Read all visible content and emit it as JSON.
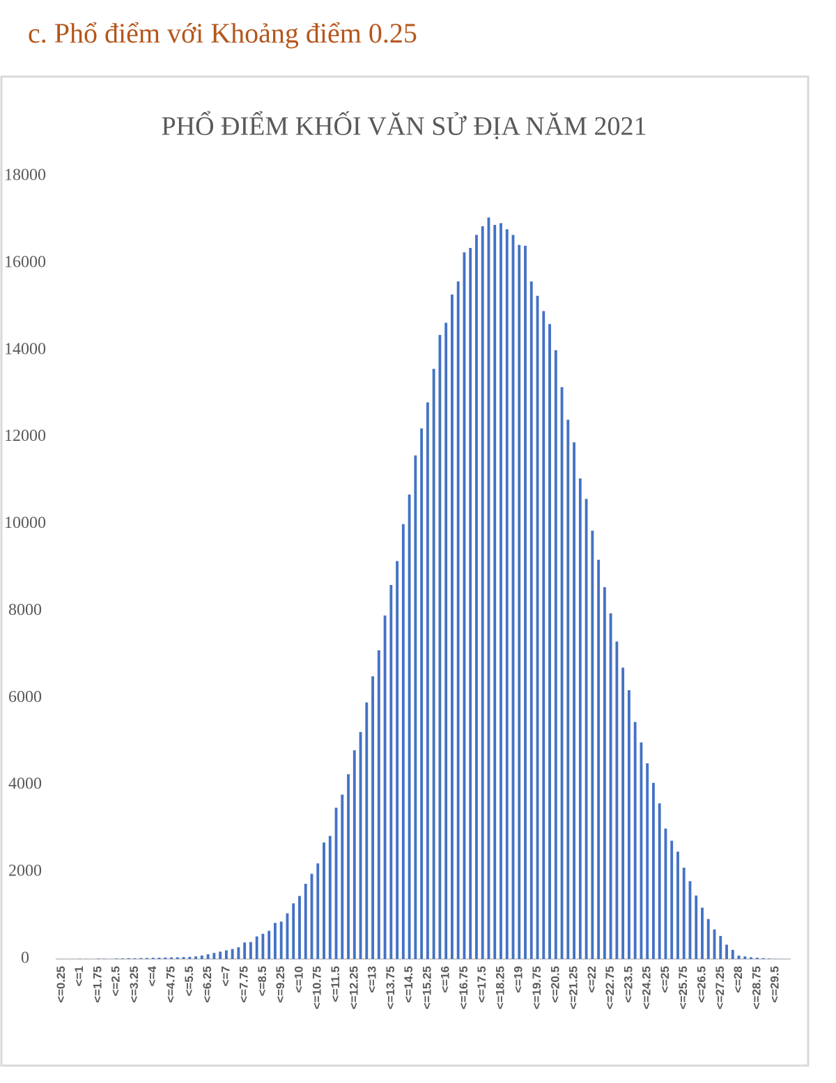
{
  "heading": "c.  Phổ điểm với Khoảng điểm 0.25",
  "chart_data": {
    "type": "bar",
    "title": "PHỔ ĐIỂM KHỐI VĂN SỬ ĐỊA NĂM 2021",
    "color": "#4472c4",
    "categories": [
      "<=0.25",
      null,
      null,
      "<=1",
      null,
      null,
      "<=1.75",
      null,
      null,
      "<=2.5",
      null,
      null,
      "<=3.25",
      null,
      null,
      "<=4",
      null,
      null,
      "<=4.75",
      null,
      null,
      "<=5.5",
      null,
      null,
      "<=6.25",
      null,
      null,
      "<=7",
      null,
      null,
      "<=7.75",
      null,
      null,
      "<=8.5",
      null,
      null,
      "<=9.25",
      null,
      null,
      "<=10",
      null,
      null,
      "<=10.75",
      null,
      null,
      "<=11.5",
      null,
      null,
      "<=12.25",
      null,
      null,
      "<=13",
      null,
      null,
      "<=13.75",
      null,
      null,
      "<=14.5",
      null,
      null,
      "<=15.25",
      null,
      null,
      "<=16",
      null,
      null,
      "<=16.75",
      null,
      null,
      "<=17.5",
      null,
      null,
      "<=18.25",
      null,
      null,
      "<=19",
      null,
      null,
      "<=19.75",
      null,
      null,
      "<=20.5",
      null,
      null,
      "<=21.25",
      null,
      null,
      "<=22",
      null,
      null,
      "<=22.75",
      null,
      null,
      "<=23.5",
      null,
      null,
      "<=24.25",
      null,
      null,
      "<=25",
      null,
      null,
      "<=25.75",
      null,
      null,
      "<=26.5",
      null,
      null,
      "<=27.25",
      null,
      null,
      "<=28",
      null,
      null,
      "<=28.75",
      null,
      null,
      "<=29.5",
      null,
      null
    ],
    "values": [
      2,
      0,
      0,
      5,
      3,
      0,
      10,
      8,
      0,
      12,
      15,
      20,
      18,
      22,
      25,
      28,
      30,
      35,
      38,
      40,
      45,
      50,
      60,
      80,
      110,
      140,
      170,
      200,
      230,
      270,
      380,
      390,
      520,
      580,
      650,
      830,
      860,
      1050,
      1280,
      1450,
      1730,
      1960,
      2200,
      2680,
      2830,
      3480,
      3780,
      4250,
      4800,
      5220,
      5900,
      6500,
      7100,
      7900,
      8600,
      9150,
      10000,
      10680,
      11580,
      12200,
      12800,
      13570,
      14350,
      14630,
      15280,
      15580,
      16250,
      16350,
      16650,
      16850,
      17050,
      16880,
      16920,
      16780,
      16650,
      16420,
      16400,
      15580,
      15250,
      14900,
      14600,
      14000,
      13150,
      12400,
      11880,
      11050,
      10580,
      9850,
      9180,
      8550,
      7950,
      7300,
      6700,
      6180,
      5450,
      4980,
      4500,
      4050,
      3580,
      3000,
      2720,
      2470,
      2100,
      1790,
      1460,
      1180,
      920,
      680,
      530,
      330,
      210,
      80,
      60,
      40,
      30,
      20,
      10,
      5,
      2,
      0
    ],
    "ylim": [
      0,
      18000
    ],
    "yticks": [
      0,
      2000,
      4000,
      6000,
      8000,
      10000,
      12000,
      14000,
      16000,
      18000
    ],
    "grid": false
  }
}
